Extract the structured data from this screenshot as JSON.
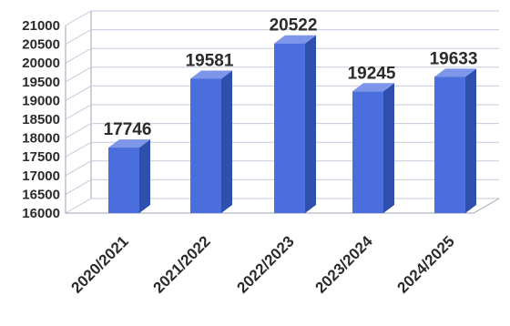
{
  "chart_data": {
    "type": "bar",
    "categories": [
      "2020/2021",
      "2021/2022",
      "2022/2023",
      "2023/2024",
      "2024/2025"
    ],
    "values": [
      17746,
      19581,
      20522,
      19245,
      19633
    ],
    "title": "",
    "xlabel": "",
    "ylabel": "",
    "ylim": [
      16000,
      21000
    ],
    "yticks": [
      16000,
      16500,
      17000,
      17500,
      18000,
      18500,
      19000,
      19500,
      20000,
      20500,
      21000
    ],
    "ytick_labels": [
      "16000",
      "16500",
      "17000",
      "17500",
      "18000",
      "18500",
      "19000",
      "19500",
      "20000",
      "20500",
      "21000"
    ],
    "data_labels": [
      "17746",
      "19581",
      "20522",
      "19245",
      "19633"
    ],
    "grid": true,
    "legend": "none",
    "style": "3d-column",
    "colors": {
      "bar_front": "#4a6fdc",
      "bar_side": "#2f4fae",
      "bar_top": "#7d96ea"
    }
  }
}
